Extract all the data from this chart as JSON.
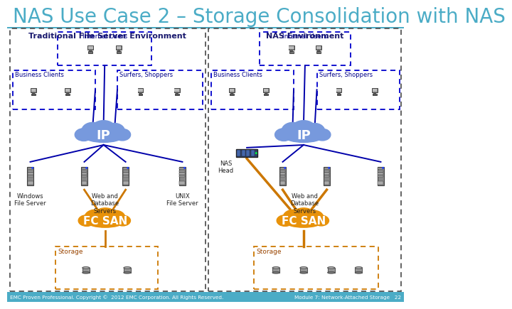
{
  "title": "NAS Use Case 2 – Storage Consolidation with NAS",
  "title_color": "#4bacc6",
  "title_fontsize": 20,
  "bg_color": "#ffffff",
  "footer_bar_color": "#4bacc6",
  "left_box_title": "Traditional File Server Environment",
  "right_box_title": "NAS Environment",
  "footer_left": "EMC Proven Professional. Copyright ©  2012 EMC Corporation. All Rights Reserved.",
  "footer_right": "Module 7: Network-Attached Storage   22",
  "dashed_dark": "#333355",
  "dashed_blue": "#0000cc",
  "dashed_orange": "#cc7700",
  "cloud_blue": "#6688cc",
  "cloud_blue_dark": "#4455aa",
  "cloud_orange": "#e8920a",
  "line_blue": "#0000aa",
  "line_orange": "#cc7700",
  "left_labels": {
    "internal_users": "Internal Users",
    "business_clients": "Business Clients",
    "surfers_shoppers": "Surfers, Shoppers",
    "ip": "IP",
    "web_db": "Web and\nDatabase\nServers",
    "fc_san": "FC SAN",
    "storage": "Storage",
    "windows_fs": "Windows\nFile Server",
    "unix_fs": "UNIX\nFile Server"
  },
  "right_labels": {
    "internal_users": "Internal Users",
    "business_clients": "Business Clients",
    "surfers_shoppers": "Surfers, Shoppers",
    "ip": "IP",
    "nas_head": "NAS\nHead",
    "web_db": "Web and\nDatabase\nServers",
    "fc_san": "FC SAN",
    "storage": "Storage"
  }
}
